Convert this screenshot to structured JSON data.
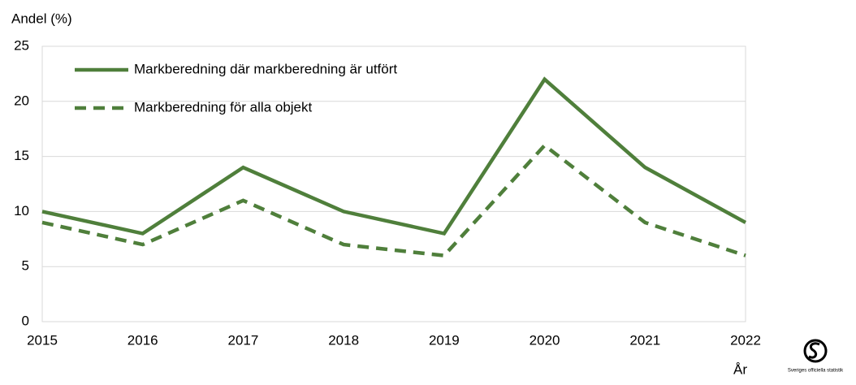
{
  "chart_data": {
    "type": "line",
    "y_label": "Andel (%)",
    "x_label": "År",
    "logo_text": "Sveriges officiella statistik",
    "categories": [
      "2015",
      "2016",
      "2017",
      "2018",
      "2019",
      "2020",
      "2021",
      "2022"
    ],
    "series": [
      {
        "name": "Markberedning där markberedning är utfört",
        "color": "#4f7f3b",
        "line_style": "solid",
        "values": [
          10,
          8,
          14,
          10,
          8,
          22,
          14,
          9
        ]
      },
      {
        "name": "Markberedning för alla objekt",
        "color": "#4f7f3b",
        "line_style": "dashed",
        "values": [
          9,
          7,
          11,
          7,
          6,
          16,
          9,
          6
        ]
      }
    ],
    "ylim": [
      0,
      25
    ],
    "yticks": [
      0,
      5,
      10,
      15,
      20,
      25
    ],
    "grid": true,
    "legend": "upper left"
  }
}
